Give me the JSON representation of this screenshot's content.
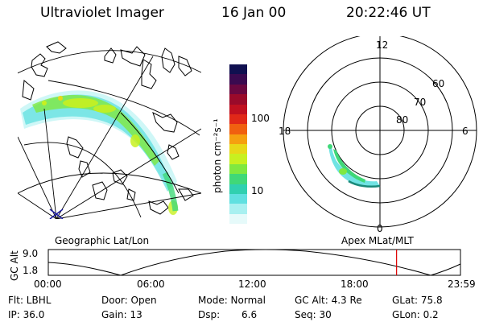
{
  "header": {
    "title": "Ultraviolet Imager",
    "date": "16 Jan 00",
    "time": "20:22:46 UT"
  },
  "left_panel": {
    "caption": "Geographic Lat/Lon"
  },
  "colorbar": {
    "label": "photon cm⁻²s⁻¹",
    "ticks": [
      "100",
      "10"
    ],
    "colors": [
      "#101050",
      "#3a0a50",
      "#6a0840",
      "#9a0a2a",
      "#c01020",
      "#e02818",
      "#f06010",
      "#f5a010",
      "#e8d818",
      "#c8f020",
      "#80e840",
      "#40d878",
      "#30d0b0",
      "#60e0e0",
      "#a8f0f0",
      "#e6fafa"
    ]
  },
  "right_panel": {
    "caption": "Apex  MLat/MLT",
    "mlt_labels": [
      "12",
      "6",
      "0",
      "18"
    ],
    "lat_labels": [
      "60",
      "70",
      "80"
    ]
  },
  "altitude_plot": {
    "ylabel": "GC Alt",
    "y_ticks": [
      "9.0",
      "1.8"
    ],
    "x_ticks": [
      "00:00",
      "06:00",
      "12:00",
      "18:00",
      "23:59"
    ],
    "current_time_fraction": 0.845,
    "marker_color": "#dd0000"
  },
  "info": {
    "row1": [
      "Flt: LBHL",
      "Door: Open",
      "Mode: Normal",
      "GC Alt: 4.3 Re",
      "GLat:  75.8"
    ],
    "row2": [
      "IP: 36.0",
      "Gain: 13",
      "Dsp:",
      "6.6",
      "Seq: 30",
      "GLon:   0.2"
    ]
  }
}
